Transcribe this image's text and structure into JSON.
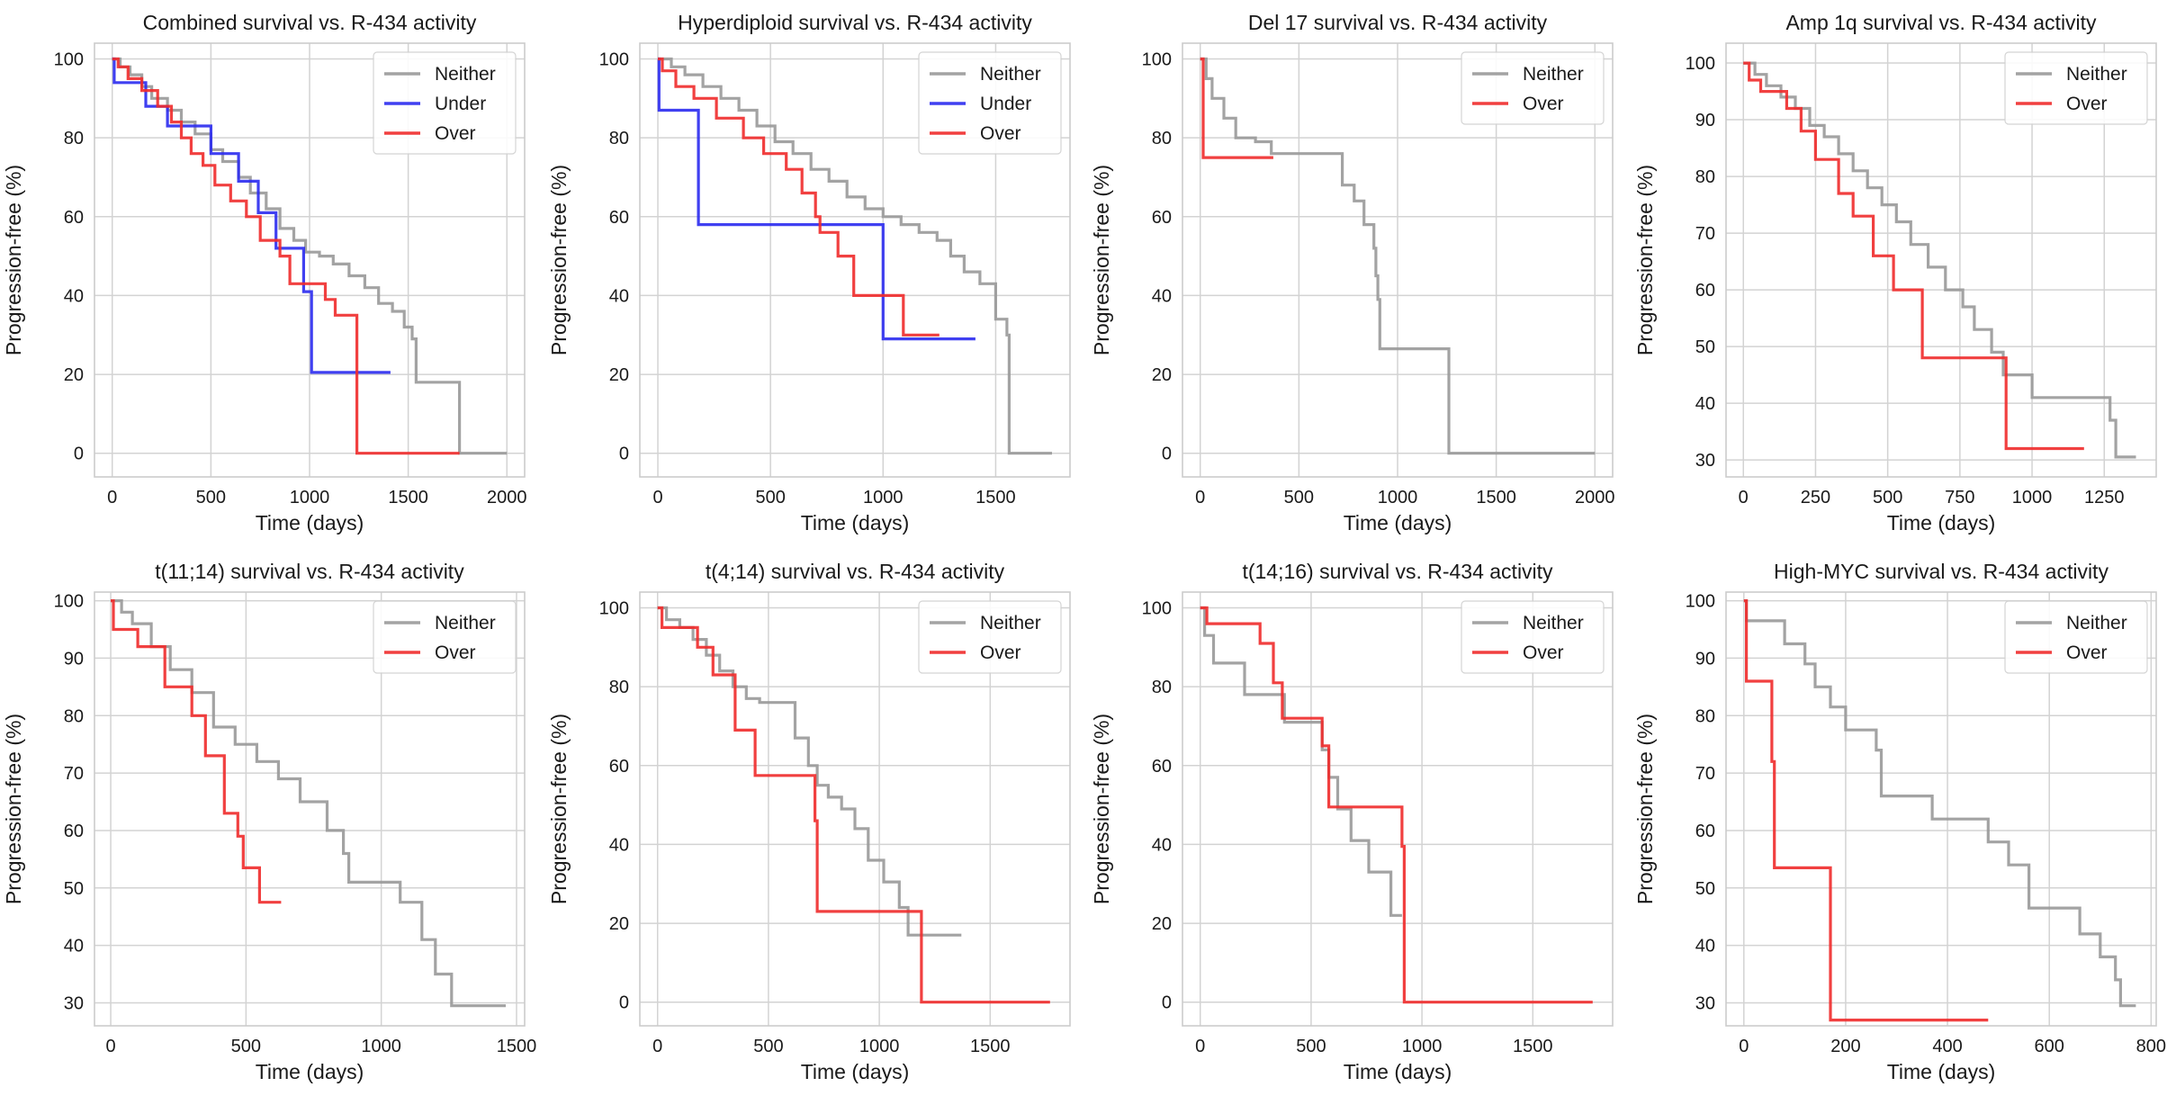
{
  "colors": {
    "Neither": "#999999",
    "Under": "#2b2bf0",
    "Over": "#f02b2b"
  },
  "chart_data": [
    {
      "type": "line",
      "title": "Combined survival vs. R-434 activity",
      "xlabel": "Time (days)",
      "ylabel": "Progression-free (%)",
      "xlim": [
        -90,
        2090
      ],
      "ylim": [
        -6,
        104
      ],
      "xticks": [
        0,
        500,
        1000,
        1500,
        2000
      ],
      "yticks": [
        0,
        20,
        40,
        60,
        80,
        100
      ],
      "grid": true,
      "legend_position": "top-right",
      "series": [
        {
          "name": "Neither",
          "x": [
            0,
            40,
            90,
            150,
            200,
            280,
            350,
            420,
            500,
            560,
            640,
            700,
            780,
            850,
            920,
            980,
            1050,
            1120,
            1200,
            1280,
            1350,
            1420,
            1480,
            1520,
            1540,
            1750,
            1760,
            2000
          ],
          "y": [
            100,
            98,
            96,
            93,
            90,
            87,
            84,
            81,
            77,
            74,
            70,
            66,
            62,
            57,
            54,
            51,
            50,
            48,
            45,
            42,
            38,
            36,
            32,
            29,
            18,
            18,
            0,
            0
          ]
        },
        {
          "name": "Under",
          "x": [
            0,
            10,
            170,
            280,
            500,
            640,
            740,
            830,
            970,
            1010,
            1410
          ],
          "y": [
            100,
            94,
            88,
            83,
            76,
            69,
            61,
            52,
            41,
            20.5,
            20.5
          ]
        },
        {
          "name": "Over",
          "x": [
            0,
            30,
            80,
            150,
            230,
            300,
            350,
            400,
            460,
            520,
            600,
            680,
            750,
            850,
            900,
            1010,
            1080,
            1130,
            1230,
            1240,
            1760
          ],
          "y": [
            100,
            98,
            95,
            92,
            88,
            84,
            80,
            76,
            73,
            68,
            64,
            60,
            54,
            50,
            43,
            43,
            39,
            35,
            35,
            0,
            0
          ]
        }
      ]
    },
    {
      "type": "line",
      "title": "Hyperdiploid survival vs. R-434 activity",
      "xlabel": "Time (days)",
      "ylabel": "Progression-free (%)",
      "xlim": [
        -80,
        1830
      ],
      "ylim": [
        -6,
        104
      ],
      "xticks": [
        0,
        500,
        1000,
        1500
      ],
      "yticks": [
        0,
        20,
        40,
        60,
        80,
        100
      ],
      "grid": true,
      "legend_position": "top-right",
      "series": [
        {
          "name": "Neither",
          "x": [
            0,
            60,
            120,
            200,
            280,
            360,
            440,
            520,
            600,
            680,
            760,
            840,
            920,
            1000,
            1080,
            1160,
            1240,
            1300,
            1360,
            1430,
            1500,
            1510,
            1550,
            1560,
            1750
          ],
          "y": [
            100,
            98,
            96,
            93,
            90,
            87,
            83,
            79,
            76,
            72,
            69,
            65,
            62,
            60,
            58,
            56,
            54,
            50,
            46,
            43,
            34,
            34,
            30,
            0,
            0
          ]
        },
        {
          "name": "Under",
          "x": [
            0,
            5,
            180,
            1000,
            1410
          ],
          "y": [
            100,
            87,
            58,
            29,
            29
          ]
        },
        {
          "name": "Over",
          "x": [
            0,
            20,
            80,
            160,
            260,
            380,
            470,
            570,
            640,
            700,
            720,
            800,
            870,
            1000,
            1090,
            1250
          ],
          "y": [
            100,
            97,
            93,
            90,
            85,
            80,
            76,
            72,
            66,
            60,
            56,
            50,
            40,
            40,
            30,
            30
          ]
        }
      ]
    },
    {
      "type": "line",
      "title": "Del 17 survival vs. R-434 activity",
      "xlabel": "Time (days)",
      "ylabel": "Progression-free (%)",
      "xlim": [
        -90,
        2090
      ],
      "ylim": [
        -6,
        104
      ],
      "xticks": [
        0,
        500,
        1000,
        1500,
        2000
      ],
      "yticks": [
        0,
        20,
        40,
        60,
        80,
        100
      ],
      "grid": true,
      "legend_position": "top-right",
      "series": [
        {
          "name": "Neither",
          "x": [
            0,
            30,
            60,
            120,
            180,
            280,
            360,
            450,
            720,
            780,
            830,
            880,
            890,
            900,
            910,
            1250,
            1260,
            2000
          ],
          "y": [
            100,
            95,
            90,
            85,
            80,
            79,
            76,
            76,
            68,
            64,
            58,
            52,
            45,
            39,
            26.5,
            26.5,
            0,
            0
          ]
        },
        {
          "name": "Over",
          "x": [
            0,
            15,
            370
          ],
          "y": [
            100,
            75,
            75
          ]
        }
      ]
    },
    {
      "type": "line",
      "title": "Amp 1q survival vs. R-434 activity",
      "xlabel": "Time (days)",
      "ylabel": "Progression-free (%)",
      "xlim": [
        -60,
        1430
      ],
      "ylim": [
        27,
        103.5
      ],
      "xticks": [
        0,
        250,
        500,
        750,
        1000,
        1250
      ],
      "yticks": [
        30,
        40,
        50,
        60,
        70,
        80,
        90,
        100
      ],
      "grid": true,
      "legend_position": "top-right",
      "series": [
        {
          "name": "Neither",
          "x": [
            0,
            40,
            80,
            130,
            180,
            230,
            280,
            330,
            380,
            430,
            480,
            530,
            580,
            640,
            700,
            760,
            800,
            860,
            900,
            1000,
            1250,
            1270,
            1290,
            1360
          ],
          "y": [
            100,
            98,
            96,
            94,
            92,
            89,
            87,
            84,
            81,
            78,
            75,
            72,
            68,
            64,
            60,
            57,
            53,
            49,
            45,
            41,
            41,
            37,
            30.5,
            30.5
          ]
        },
        {
          "name": "Over",
          "x": [
            0,
            20,
            60,
            150,
            200,
            250,
            330,
            380,
            450,
            520,
            610,
            620,
            900,
            910,
            1180
          ],
          "y": [
            100,
            97,
            95,
            92,
            88,
            83,
            77,
            73,
            66,
            60,
            60,
            48,
            48,
            32,
            32
          ]
        }
      ]
    },
    {
      "type": "line",
      "title": "t(11;14) survival vs. R-434 activity",
      "xlabel": "Time (days)",
      "ylabel": "Progression-free (%)",
      "xlim": [
        -60,
        1530
      ],
      "ylim": [
        26,
        101.5
      ],
      "xticks": [
        0,
        500,
        1000,
        1500
      ],
      "yticks": [
        30,
        40,
        50,
        60,
        70,
        80,
        90,
        100
      ],
      "grid": true,
      "legend_position": "top-right",
      "series": [
        {
          "name": "Neither",
          "x": [
            0,
            40,
            80,
            150,
            220,
            300,
            380,
            460,
            540,
            620,
            700,
            800,
            860,
            880,
            1050,
            1070,
            1150,
            1200,
            1250,
            1260,
            1460
          ],
          "y": [
            100,
            98,
            96,
            92,
            88,
            84,
            78,
            75,
            72,
            69,
            65,
            60,
            56,
            51,
            51,
            47.5,
            41,
            35,
            35,
            29.5,
            29.5
          ]
        },
        {
          "name": "Over",
          "x": [
            0,
            10,
            100,
            200,
            300,
            350,
            420,
            470,
            490,
            550,
            630
          ],
          "y": [
            100,
            95,
            92,
            85,
            80,
            73,
            63,
            59,
            53.5,
            47.5,
            47.5
          ]
        }
      ]
    },
    {
      "type": "line",
      "title": "t(4;14) survival vs. R-434 activity",
      "xlabel": "Time (days)",
      "ylabel": "Progression-free (%)",
      "xlim": [
        -80,
        1860
      ],
      "ylim": [
        -6,
        104
      ],
      "xticks": [
        0,
        500,
        1000,
        1500
      ],
      "yticks": [
        0,
        20,
        40,
        60,
        80,
        100
      ],
      "grid": true,
      "legend_position": "top-right",
      "series": [
        {
          "name": "Neither",
          "x": [
            0,
            40,
            100,
            160,
            220,
            280,
            340,
            400,
            460,
            520,
            620,
            680,
            720,
            770,
            830,
            890,
            950,
            1020,
            1090,
            1130,
            1370
          ],
          "y": [
            100,
            97,
            95,
            92,
            88,
            84,
            80,
            77,
            76,
            76,
            67,
            60,
            55,
            52,
            49,
            44,
            36,
            30.5,
            24,
            17,
            17
          ]
        },
        {
          "name": "Over",
          "x": [
            0,
            20,
            180,
            250,
            350,
            440,
            710,
            720,
            1180,
            1190,
            1770
          ],
          "y": [
            100,
            95,
            90,
            83,
            69,
            57.5,
            46,
            23,
            23,
            0,
            0
          ]
        }
      ]
    },
    {
      "type": "line",
      "title": "t(14;16) survival vs. R-434 activity",
      "xlabel": "Time (days)",
      "ylabel": "Progression-free (%)",
      "xlim": [
        -80,
        1860
      ],
      "ylim": [
        -6,
        104
      ],
      "xticks": [
        0,
        500,
        1000,
        1500
      ],
      "yticks": [
        0,
        20,
        40,
        60,
        80,
        100
      ],
      "grid": true,
      "legend_position": "top-right",
      "series": [
        {
          "name": "Neither",
          "x": [
            0,
            20,
            60,
            200,
            380,
            550,
            580,
            620,
            680,
            760,
            860,
            910
          ],
          "y": [
            100,
            93,
            86,
            78,
            71,
            64,
            57,
            49,
            41,
            33,
            22,
            22
          ]
        },
        {
          "name": "Over",
          "x": [
            0,
            30,
            270,
            330,
            370,
            550,
            580,
            910,
            920,
            1770
          ],
          "y": [
            100,
            96,
            91,
            81,
            72,
            65,
            49.5,
            39.5,
            0,
            0
          ]
        }
      ]
    },
    {
      "type": "line",
      "title": "High-MYC survival vs. R-434 activity",
      "xlabel": "Time (days)",
      "ylabel": "Progression-free (%)",
      "xlim": [
        -35,
        810
      ],
      "ylim": [
        26,
        101.5
      ],
      "xticks": [
        0,
        200,
        400,
        600,
        800
      ],
      "yticks": [
        30,
        40,
        50,
        60,
        70,
        80,
        90,
        100
      ],
      "grid": true,
      "legend_position": "top-right",
      "series": [
        {
          "name": "Neither",
          "x": [
            0,
            5,
            80,
            120,
            140,
            170,
            200,
            260,
            270,
            370,
            480,
            520,
            560,
            660,
            700,
            730,
            740,
            770
          ],
          "y": [
            100,
            96.5,
            92.5,
            89,
            85,
            81.5,
            77.5,
            74,
            66,
            62,
            58,
            54,
            46.5,
            42,
            38,
            34,
            29.5,
            29.5
          ]
        },
        {
          "name": "Over",
          "x": [
            0,
            5,
            55,
            60,
            160,
            170,
            480
          ],
          "y": [
            100,
            86,
            72,
            53.5,
            53.5,
            27,
            27
          ]
        }
      ]
    }
  ]
}
